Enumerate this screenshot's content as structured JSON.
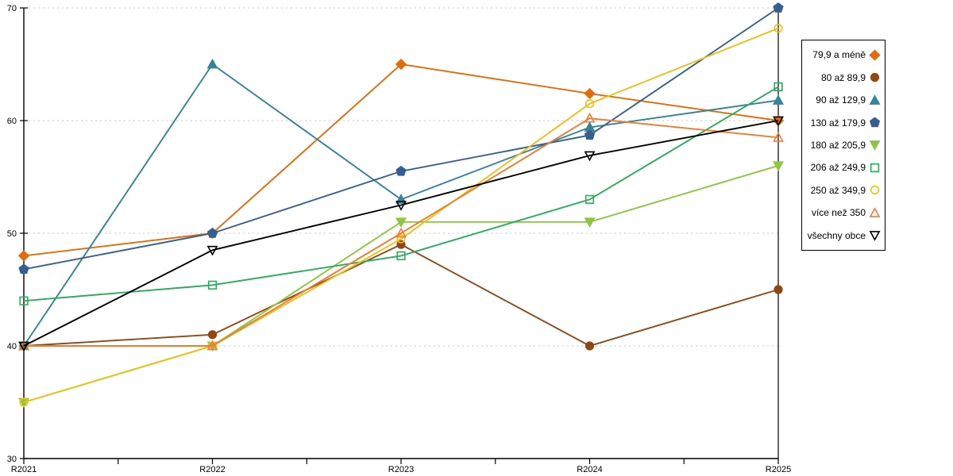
{
  "chart_data": {
    "type": "line",
    "title": "",
    "xlabel": "",
    "ylabel": "",
    "x_categories": [
      "R2021",
      "R2022",
      "R2023",
      "R2024",
      "R2025"
    ],
    "y_ticks": [
      30,
      40,
      50,
      60,
      70
    ],
    "ylim": [
      30,
      70
    ],
    "grid": "horizontal-dashed",
    "gridline_color": "#c6c6c6",
    "axis_color": "#000000",
    "background_color": "#ffffff",
    "legend_position": "right",
    "series": [
      {
        "name": "79,9 a méně",
        "color": "#e36c0a",
        "marker": "diamond",
        "fill": "filled",
        "values": [
          48,
          50,
          65,
          62.4,
          60
        ]
      },
      {
        "name": "80 až 89,9",
        "color": "#8f4713",
        "marker": "circle",
        "fill": "filled",
        "values": [
          40,
          41,
          49,
          40,
          45
        ]
      },
      {
        "name": "90 až 129,9",
        "color": "#31849b",
        "marker": "triangle-up",
        "fill": "filled",
        "values": [
          40,
          65,
          53,
          59.4,
          61.8
        ]
      },
      {
        "name": "130 až 179,9",
        "color": "#365f91",
        "marker": "pentagon",
        "fill": "filled",
        "values": [
          46.8,
          50,
          55.5,
          58.7,
          70
        ]
      },
      {
        "name": "180 až 205,9",
        "color": "#8dc63f",
        "marker": "triangle-down",
        "fill": "filled",
        "values": [
          35,
          40,
          51,
          51,
          56
        ]
      },
      {
        "name": "206 až 249,9",
        "color": "#2bac5f",
        "marker": "square",
        "fill": "hollow",
        "values": [
          44,
          45.4,
          48,
          53,
          63
        ]
      },
      {
        "name": "250 až 349,9",
        "color": "#f0c011",
        "marker": "circle",
        "fill": "hollow",
        "values": [
          35,
          40,
          49.5,
          61.5,
          68.2
        ]
      },
      {
        "name": "více než 350",
        "color": "#ed7d31",
        "marker": "triangle-up",
        "fill": "hollow",
        "values": [
          40,
          40,
          50,
          60.2,
          58.5
        ]
      },
      {
        "name": "všechny obce",
        "color": "#000000",
        "marker": "triangle-down",
        "fill": "hollow",
        "values": [
          40,
          48.5,
          52.5,
          56.9,
          60
        ]
      }
    ]
  }
}
